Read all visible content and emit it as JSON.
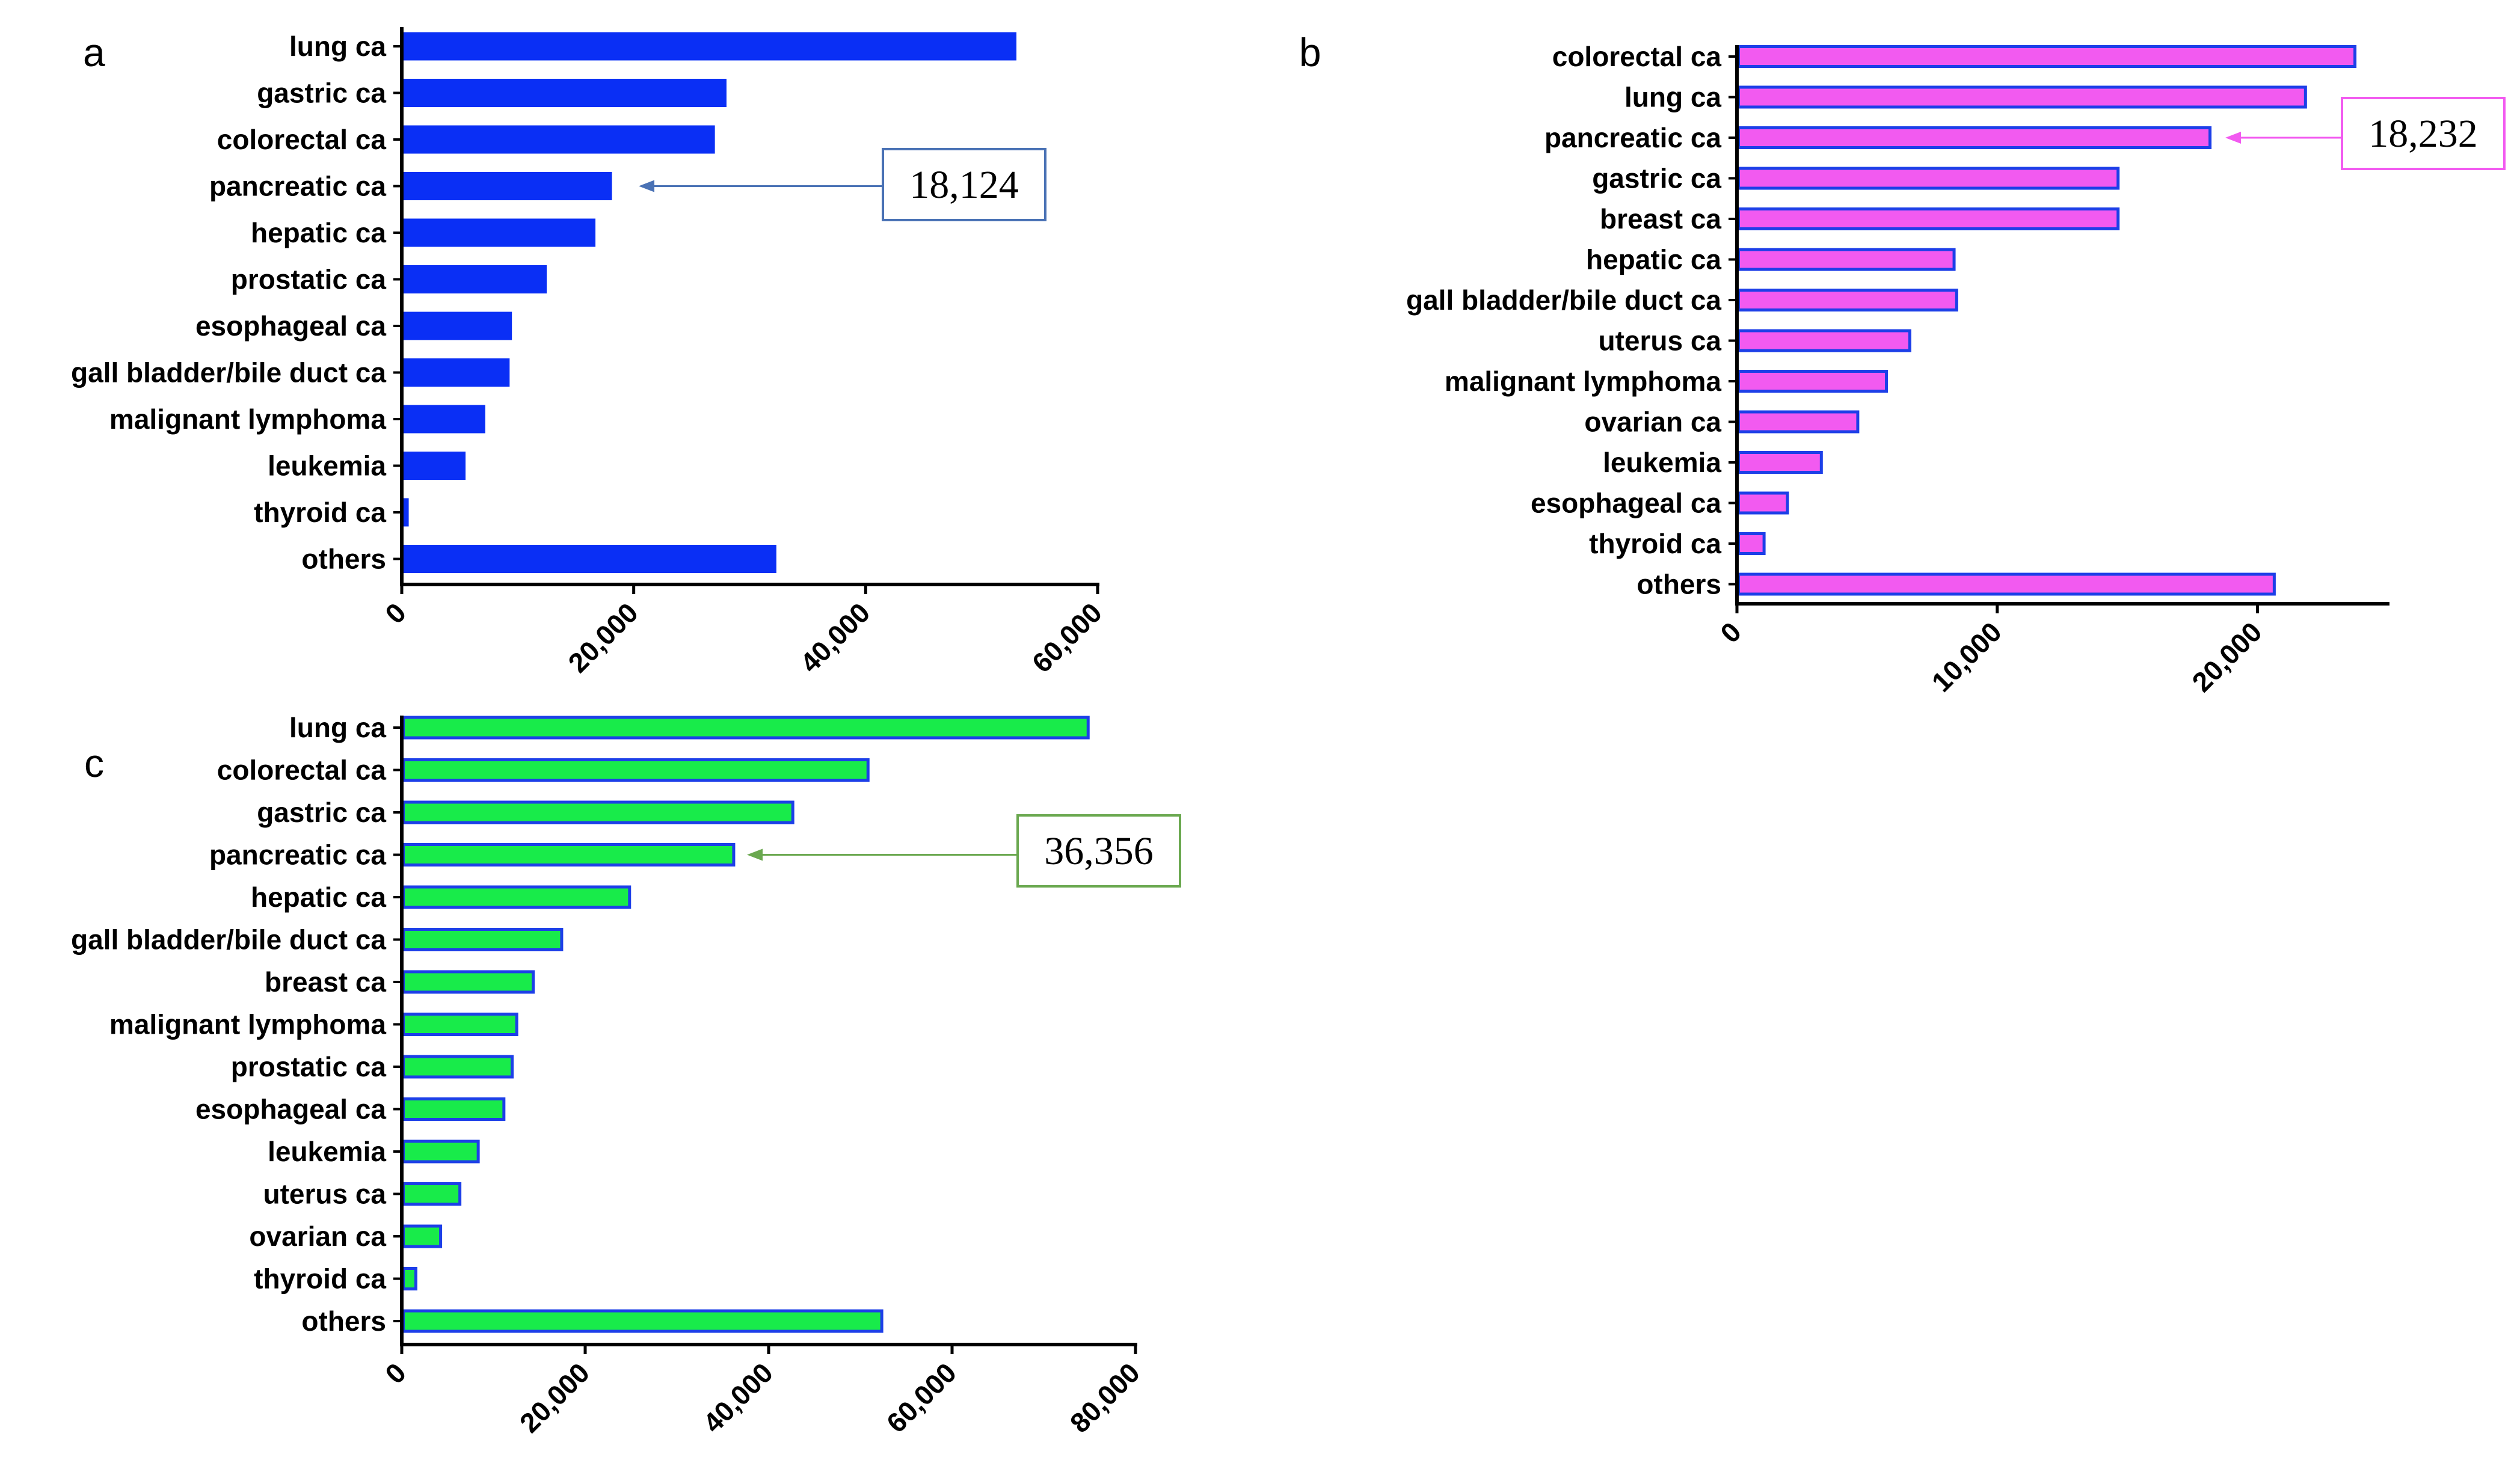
{
  "chart_data": [
    {
      "type": "bar",
      "orientation": "horizontal",
      "panel_label": "a",
      "categories": [
        "lung ca",
        "gastric ca",
        "colorectal ca",
        "pancreatic ca",
        "hepatic ca",
        "prostatic ca",
        "esophageal ca",
        "gall bladder/bile duct ca",
        "malignant lymphoma",
        "leukemia",
        "thyroid ca",
        "others"
      ],
      "values": [
        53000,
        28000,
        27000,
        18124,
        16700,
        12500,
        9500,
        9300,
        7200,
        5500,
        600,
        32300
      ],
      "xlim": [
        0,
        60000
      ],
      "xticks": [
        0,
        20000,
        40000,
        60000
      ],
      "xtick_labels": [
        "0",
        "20,000",
        "40,000",
        "60,000"
      ],
      "bar_color": "#0a2ff5",
      "bar_edge": "#0a2ff5",
      "annotation": {
        "text": "18,124",
        "category": "pancreatic ca",
        "box_color": "#4a72b5"
      }
    },
    {
      "type": "bar",
      "orientation": "horizontal",
      "panel_label": "b",
      "categories": [
        "colorectal ca",
        "lung ca",
        "pancreatic ca",
        "gastric ca",
        "breast ca",
        "hepatic ca",
        "gall bladder/bile duct ca",
        "uterus ca",
        "malignant lymphoma",
        "ovarian ca",
        "leukemia",
        "esophageal ca",
        "thyroid ca",
        "others"
      ],
      "values": [
        23800,
        21900,
        18232,
        14700,
        14700,
        8400,
        8500,
        6700,
        5800,
        4700,
        3300,
        2000,
        1100,
        20700
      ],
      "xlim": [
        0,
        25000
      ],
      "xticks": [
        0,
        10000,
        20000
      ],
      "xtick_labels": [
        "0",
        "10,000",
        "20,000"
      ],
      "bar_color": "#f25af0",
      "bar_edge": "#1d3fe8",
      "annotation": {
        "text": "18,232",
        "category": "pancreatic ca",
        "box_color": "#f25af0"
      }
    },
    {
      "type": "bar",
      "orientation": "horizontal",
      "panel_label": "c",
      "categories": [
        "lung ca",
        "colorectal ca",
        "gastric ca",
        "pancreatic ca",
        "hepatic ca",
        "gall bladder/bile duct ca",
        "breast ca",
        "malignant lymphoma",
        "prostatic ca",
        "esophageal ca",
        "leukemia",
        "uterus ca",
        "ovarian ca",
        "thyroid ca",
        "others"
      ],
      "values": [
        75000,
        51000,
        42800,
        36356,
        25000,
        17600,
        14500,
        12700,
        12200,
        11300,
        8500,
        6500,
        4400,
        1700,
        52500
      ],
      "xlim": [
        0,
        80000
      ],
      "xticks": [
        0,
        20000,
        40000,
        60000,
        80000
      ],
      "xtick_labels": [
        "0",
        "20,000",
        "40,000",
        "60,000",
        "80,000"
      ],
      "bar_color": "#18eb4a",
      "bar_edge": "#1d3fe8",
      "annotation": {
        "text": "36,356",
        "category": "pancreatic ca",
        "box_color": "#6aa84f"
      }
    }
  ]
}
